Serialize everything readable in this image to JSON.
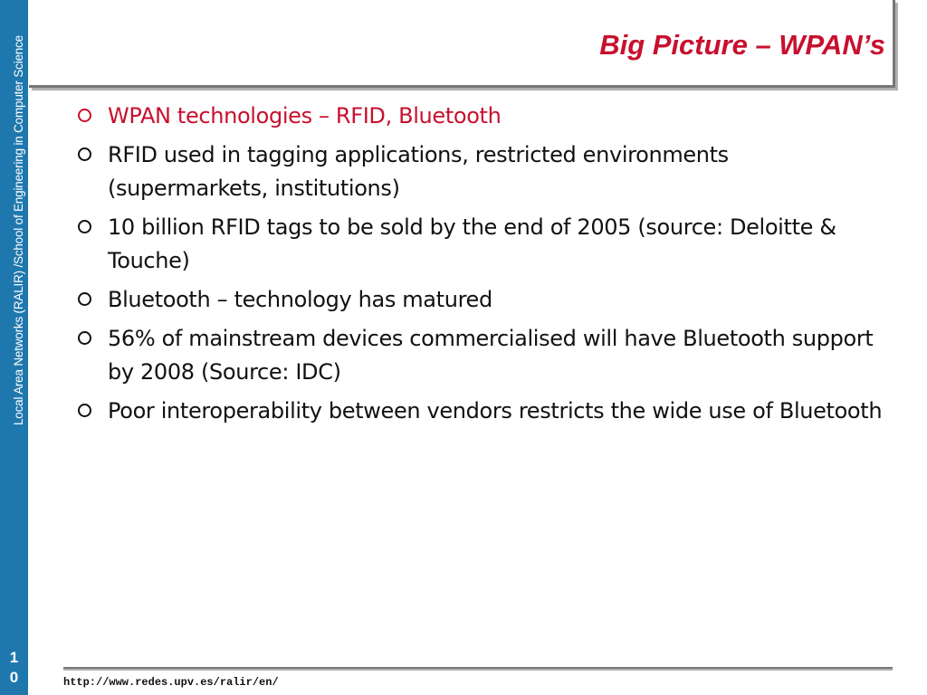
{
  "sidebar": {
    "text": "Local Area Networks (RALIR) /School of Engineering in Computer Science",
    "page_number_lines": [
      "1",
      "0"
    ],
    "color": "#1f78ad"
  },
  "slide": {
    "title": "Big Picture – WPAN’s",
    "title_color": "#c8102e",
    "bullets": [
      "WPAN technologies – RFID, Bluetooth",
      "RFID used in tagging applications, restricted environments (supermarkets, institutions)",
      "10 billion RFID tags to be sold by the end of 2005 (source: Deloitte & Touche)",
      "Bluetooth – technology has matured",
      "56% of mainstream devices commercialised will have Bluetooth support by 2008 (Source: IDC)",
      "Poor interoperability between vendors restricts the wide use of Bluetooth"
    ]
  },
  "footer": {
    "url": "http://www.redes.upv.es/ralir/en/"
  }
}
